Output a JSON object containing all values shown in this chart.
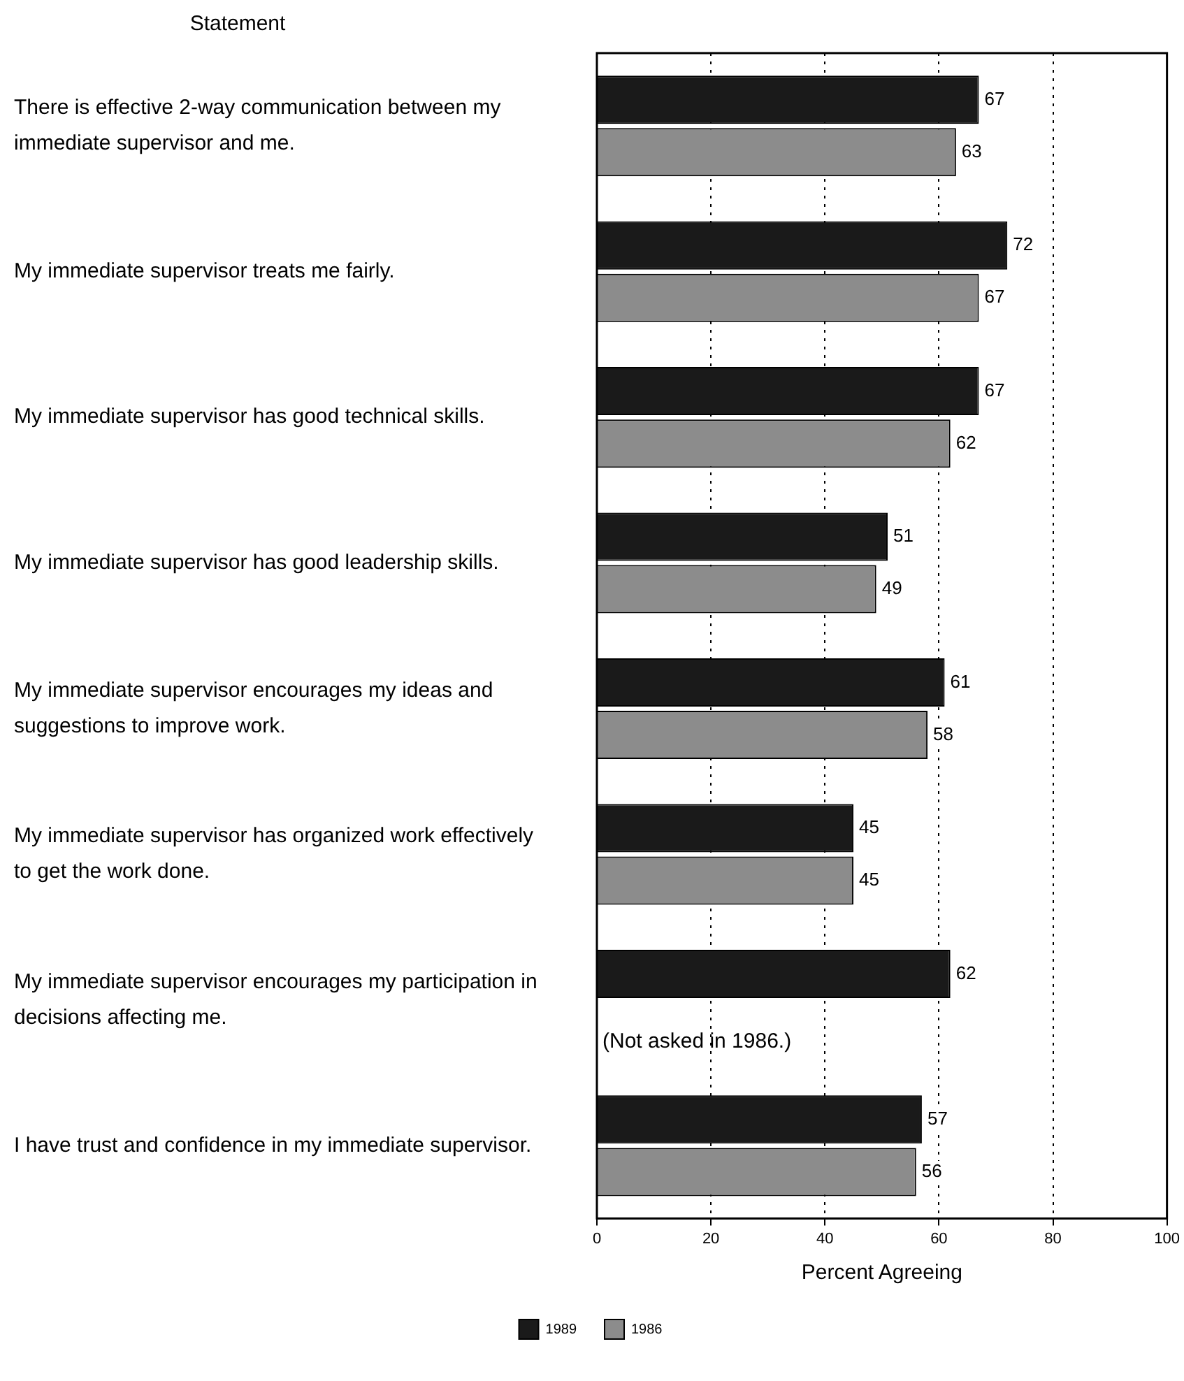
{
  "chart_data": {
    "type": "bar",
    "orientation": "horizontal",
    "ylabel": "Statement",
    "xlabel": "Percent Agreeing",
    "categories": [
      "There is effective 2-way communication between my immediate supervisor and me.",
      "My immediate supervisor treats me fairly.",
      "My immediate supervisor has good technical skills.",
      "My immediate supervisor has good leadership skills.",
      "My immediate supervisor encourages my ideas and suggestions to improve work.",
      "My immediate supervisor has organized work effectively to get the work done.",
      "My immediate supervisor encourages my participation in decisions affecting me.",
      "I have trust and confidence in my immediate supervisor."
    ],
    "series": [
      {
        "name": "1989",
        "color": "#1a1a1a",
        "values": [
          67,
          72,
          67,
          51,
          61,
          45,
          62,
          57
        ]
      },
      {
        "name": "1986",
        "color": "#8c8c8c",
        "values": [
          63,
          67,
          62,
          49,
          58,
          45,
          null,
          56
        ]
      }
    ],
    "xlim": [
      0,
      100
    ],
    "xticks": [
      0,
      20,
      40,
      60,
      80,
      100
    ],
    "grid": "x",
    "legend": "bottom",
    "data_labels": true,
    "annotations": [
      {
        "text": "(Not asked in 1986.)",
        "y": "My immediate supervisor encourages my participation in decisions affecting me."
      }
    ]
  }
}
